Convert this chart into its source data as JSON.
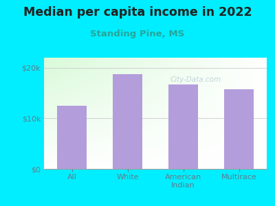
{
  "title": "Median per capita income in 2022",
  "subtitle": "Standing Pine, MS",
  "categories": [
    "All",
    "White",
    "American\nIndian",
    "Multirace"
  ],
  "values": [
    12500,
    18700,
    16700,
    15700
  ],
  "bar_color": "#b39ddb",
  "background_outer": "#00eeff",
  "title_color": "#212121",
  "subtitle_color": "#26a69a",
  "axis_label_color": "#607d8b",
  "tick_label_color": "#607d8b",
  "ylim": [
    0,
    22000
  ],
  "yticks": [
    0,
    10000,
    20000
  ],
  "watermark": "City-Data.com",
  "grid_color": "#cccccc"
}
